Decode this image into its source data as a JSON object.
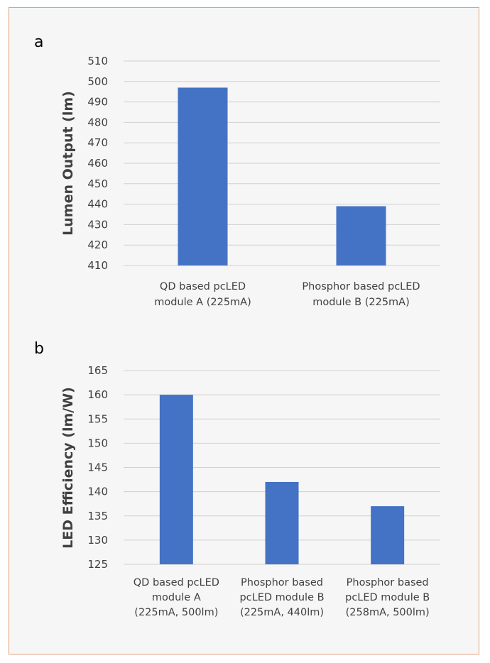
{
  "chart_data": [
    {
      "type": "bar",
      "panel_label": "a",
      "title": "",
      "xlabel": "",
      "ylabel": "Lumen Output (lm)",
      "ylim": [
        410,
        510
      ],
      "ytick_step": 10,
      "categories": [
        [
          "QD based pcLED",
          "module A (225mA)"
        ],
        [
          "Phosphor based pcLED",
          "module B (225mA)"
        ]
      ],
      "values": [
        497,
        439
      ],
      "bar_color": "#4472c4",
      "grid": true
    },
    {
      "type": "bar",
      "panel_label": "b",
      "title": "",
      "xlabel": "",
      "ylabel": "LED Efficiency (lm/W)",
      "ylim": [
        125,
        165
      ],
      "ytick_step": 5,
      "categories": [
        [
          "QD based pcLED",
          "module A",
          "(225mA, 500lm)"
        ],
        [
          "Phosphor based",
          "pcLED module B",
          "(225mA, 440lm)"
        ],
        [
          "Phosphor based",
          "pcLED module B",
          "(258mA, 500lm)"
        ]
      ],
      "values": [
        160,
        142,
        137
      ],
      "bar_color": "#4472c4",
      "grid": true
    }
  ]
}
